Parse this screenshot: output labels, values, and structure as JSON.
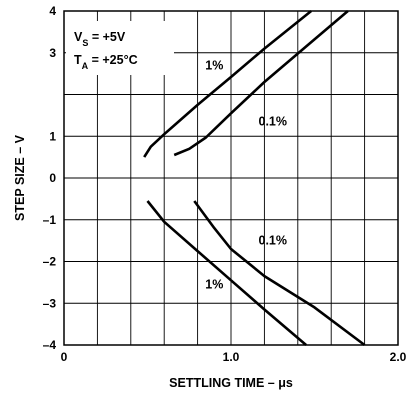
{
  "chart_data": {
    "type": "line",
    "title": "",
    "xlabel": "SETTLING TIME – μs",
    "ylabel": "STEP SIZE – V",
    "xlim": [
      0,
      2.0
    ],
    "ylim": [
      -4,
      4
    ],
    "grid": true,
    "x_ticks": [
      {
        "value": 0,
        "label": "0"
      },
      {
        "value": 1.0,
        "label": "1.0"
      },
      {
        "value": 2.0,
        "label": "2.0"
      }
    ],
    "y_ticks": [
      {
        "value": 4,
        "label": "4"
      },
      {
        "value": 3,
        "label": "3"
      },
      {
        "value": 1,
        "label": "1"
      },
      {
        "value": 0,
        "label": "0"
      },
      {
        "value": -1,
        "label": "–1"
      },
      {
        "value": -2,
        "label": "–2"
      },
      {
        "value": -3,
        "label": "–3"
      },
      {
        "value": -4,
        "label": "–4"
      }
    ],
    "conditions": {
      "vs_main": "V",
      "vs_sub": "S",
      "vs_value": " = +5V",
      "ta_main": "T",
      "ta_sub": "A",
      "ta_value": " = +25°C"
    },
    "series": [
      {
        "name": "1%",
        "points": [
          [
            0.48,
            0.5
          ],
          [
            0.52,
            0.75
          ],
          [
            0.6,
            1.05
          ],
          [
            0.8,
            1.75
          ],
          [
            1.0,
            2.42
          ],
          [
            1.2,
            3.1
          ],
          [
            1.48,
            4.0
          ]
        ]
      },
      {
        "name": "0.1%",
        "points": [
          [
            0.66,
            0.55
          ],
          [
            0.75,
            0.7
          ],
          [
            0.85,
            0.97
          ],
          [
            1.0,
            1.55
          ],
          [
            1.2,
            2.3
          ],
          [
            1.45,
            3.15
          ],
          [
            1.7,
            4.0
          ]
        ]
      },
      {
        "name": "1%",
        "points": [
          [
            0.5,
            -0.55
          ],
          [
            0.6,
            -1.05
          ],
          [
            0.8,
            -1.75
          ],
          [
            1.0,
            -2.45
          ],
          [
            1.2,
            -3.15
          ],
          [
            1.45,
            -4.0
          ]
        ]
      },
      {
        "name": "0.1%",
        "points": [
          [
            0.78,
            -0.55
          ],
          [
            0.9,
            -1.2
          ],
          [
            1.0,
            -1.7
          ],
          [
            1.2,
            -2.35
          ],
          [
            1.5,
            -3.1
          ],
          [
            1.8,
            -4.0
          ]
        ]
      }
    ],
    "annotations": [
      {
        "text": "1%",
        "x": 0.9,
        "y": 2.7
      },
      {
        "text": "0.1%",
        "x": 1.25,
        "y": 1.35
      },
      {
        "text": "0.1%",
        "x": 1.25,
        "y": -1.5
      },
      {
        "text": "1%",
        "x": 0.9,
        "y": -2.55
      }
    ]
  }
}
